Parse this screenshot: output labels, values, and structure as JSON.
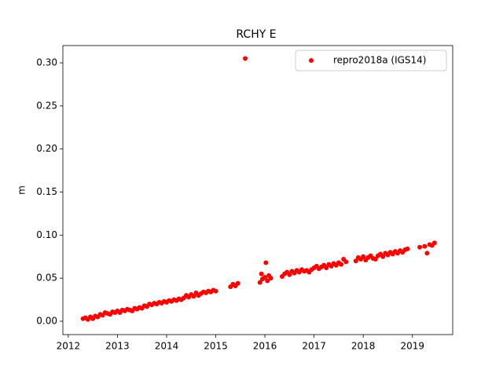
{
  "chart_data": {
    "type": "scatter",
    "title": "RCHY E",
    "y_label": "m",
    "xlim": [
      2011.89,
      2019.82
    ],
    "ylim": [
      -0.0155,
      0.3201
    ],
    "xticks": [
      2012,
      2013,
      2014,
      2015,
      2016,
      2017,
      2018,
      2019
    ],
    "yticks": [
      {
        "value": 0,
        "label": "0.00"
      },
      {
        "value": 0.05,
        "label": "0.05"
      },
      {
        "value": 0.1,
        "label": "0.10"
      },
      {
        "value": 0.15,
        "label": "0.15"
      },
      {
        "value": 0.2,
        "label": "0.20"
      },
      {
        "value": 0.25,
        "label": "0.25"
      },
      {
        "value": 0.3,
        "label": "0.30"
      }
    ],
    "legend_position": "upper right",
    "x": [
      2012.3,
      2012.35,
      2012.4,
      2012.45,
      2012.5,
      2012.55,
      2012.6,
      2012.65,
      2012.7,
      2012.75,
      2012.8,
      2012.85,
      2012.9,
      2012.95,
      2013.0,
      2013.05,
      2013.1,
      2013.15,
      2013.2,
      2013.25,
      2013.3,
      2013.35,
      2013.4,
      2013.45,
      2013.5,
      2013.55,
      2013.6,
      2013.65,
      2013.7,
      2013.75,
      2013.8,
      2013.85,
      2013.9,
      2013.95,
      2014.0,
      2014.05,
      2014.1,
      2014.15,
      2014.2,
      2014.25,
      2014.3,
      2014.35,
      2014.4,
      2014.45,
      2014.5,
      2014.55,
      2014.6,
      2014.65,
      2014.7,
      2014.75,
      2014.8,
      2014.85,
      2014.9,
      2014.95,
      2015.0,
      2015.3,
      2015.35,
      2015.4,
      2015.45,
      2015.6,
      2015.9,
      2015.93,
      2015.95,
      2016.0,
      2016.02,
      2016.05,
      2016.08,
      2016.12,
      2016.35,
      2016.4,
      2016.45,
      2016.5,
      2016.55,
      2016.6,
      2016.65,
      2016.7,
      2016.75,
      2016.8,
      2016.85,
      2016.9,
      2016.95,
      2017.0,
      2017.05,
      2017.1,
      2017.15,
      2017.2,
      2017.25,
      2017.3,
      2017.35,
      2017.4,
      2017.45,
      2017.5,
      2017.55,
      2017.6,
      2017.65,
      2017.85,
      2017.9,
      2017.95,
      2018.0,
      2018.05,
      2018.1,
      2018.15,
      2018.2,
      2018.25,
      2018.3,
      2018.35,
      2018.4,
      2018.45,
      2018.5,
      2018.55,
      2018.6,
      2018.65,
      2018.7,
      2018.75,
      2018.8,
      2018.85,
      2018.9,
      2019.15,
      2019.25,
      2019.3,
      2019.35,
      2019.4,
      2019.45
    ],
    "series": [
      {
        "name": "repro2018a (IGS14)",
        "color": "#ff0000",
        "values": [
          0.003,
          0.004,
          0.002,
          0.005,
          0.003,
          0.006,
          0.005,
          0.008,
          0.007,
          0.01,
          0.009,
          0.008,
          0.011,
          0.01,
          0.012,
          0.01,
          0.013,
          0.012,
          0.014,
          0.013,
          0.012,
          0.015,
          0.014,
          0.016,
          0.015,
          0.018,
          0.017,
          0.02,
          0.019,
          0.021,
          0.02,
          0.022,
          0.021,
          0.023,
          0.022,
          0.024,
          0.023,
          0.025,
          0.024,
          0.026,
          0.025,
          0.027,
          0.03,
          0.028,
          0.031,
          0.029,
          0.033,
          0.03,
          0.032,
          0.034,
          0.033,
          0.035,
          0.034,
          0.036,
          0.035,
          0.04,
          0.043,
          0.041,
          0.044,
          0.305,
          0.045,
          0.055,
          0.049,
          0.051,
          0.068,
          0.047,
          0.053,
          0.05,
          0.052,
          0.055,
          0.057,
          0.054,
          0.058,
          0.056,
          0.059,
          0.057,
          0.06,
          0.058,
          0.059,
          0.057,
          0.06,
          0.062,
          0.064,
          0.061,
          0.063,
          0.065,
          0.062,
          0.066,
          0.064,
          0.067,
          0.065,
          0.068,
          0.066,
          0.072,
          0.069,
          0.07,
          0.074,
          0.072,
          0.075,
          0.071,
          0.074,
          0.076,
          0.073,
          0.072,
          0.076,
          0.078,
          0.075,
          0.079,
          0.077,
          0.08,
          0.078,
          0.081,
          0.079,
          0.082,
          0.08,
          0.083,
          0.084,
          0.086,
          0.087,
          0.079,
          0.089,
          0.088,
          0.091
        ]
      }
    ]
  }
}
